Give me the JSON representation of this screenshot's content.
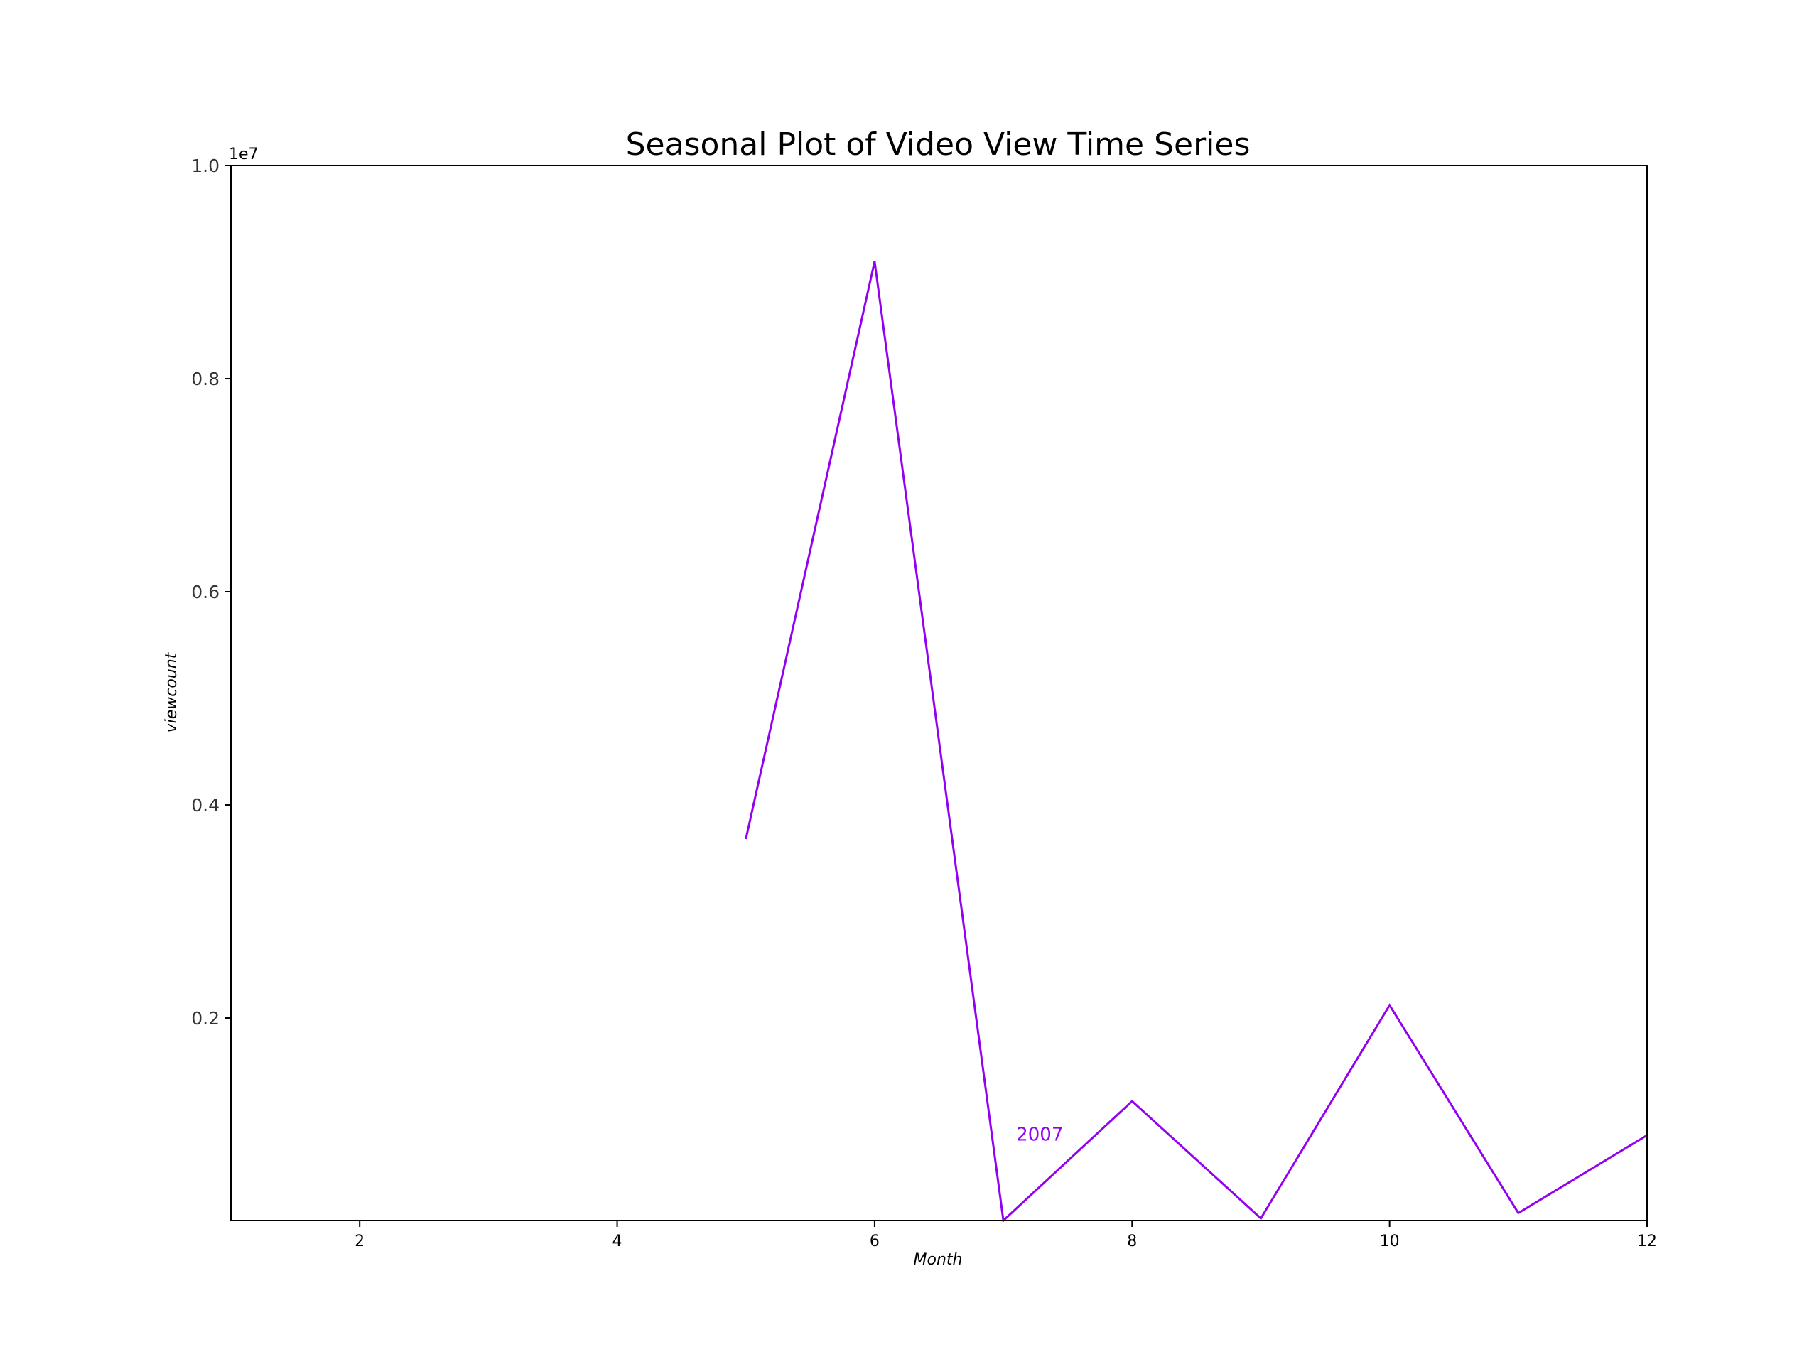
{
  "chart_data": {
    "type": "line",
    "title": "Seasonal Plot of Video View Time Series",
    "xlabel": "Month",
    "ylabel": "viewcount",
    "y_offset_label": "1e7",
    "xlim": [
      1,
      12
    ],
    "ylim": [
      0.1,
      10.0
    ],
    "x_ticks": [
      2,
      4,
      6,
      8,
      10,
      12
    ],
    "y_ticks": [
      0.2,
      0.4,
      0.6,
      0.8,
      1.0
    ],
    "y_tick_labels": [
      "0.2",
      "0.4",
      "0.6",
      "0.8",
      "1.0"
    ],
    "grid": false,
    "series": [
      {
        "color": "#9400f0",
        "x": [
          5,
          6,
          7,
          8,
          9,
          10,
          11,
          12
        ],
        "y": [
          3.68,
          9.1,
          0.1,
          1.22,
          0.12,
          2.12,
          0.17,
          0.9
        ]
      }
    ],
    "annotations": [
      {
        "text": "2007",
        "x": 7.1,
        "y": 0.85,
        "color": "#9400f0"
      }
    ]
  }
}
